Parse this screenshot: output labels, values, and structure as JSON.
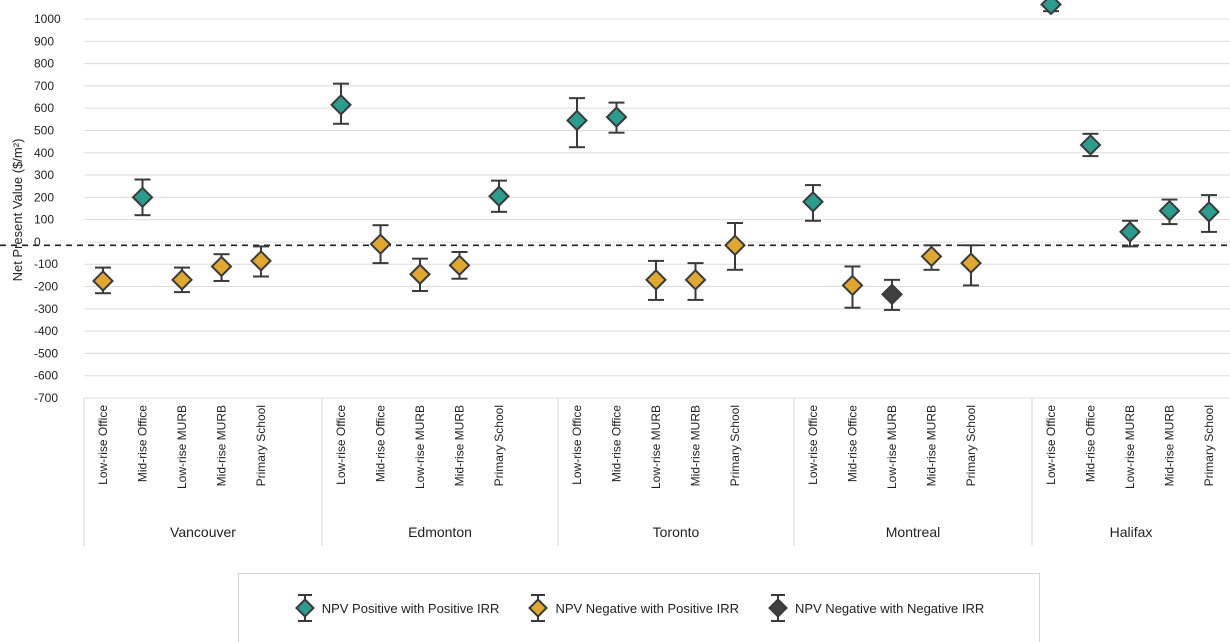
{
  "colors": {
    "positive": "#2a9d8f",
    "negative_pos_irr": "#e0a82e",
    "negative_neg_irr": "#404040",
    "stroke": "#3a3a3a",
    "grid": "#dcdcdc"
  },
  "chart_data": {
    "type": "scatter",
    "ylabel": "Net Present Value ($/m²)",
    "ylim": [
      -700,
      1000
    ],
    "yticks": [
      1000,
      900,
      800,
      700,
      600,
      500,
      400,
      300,
      200,
      100,
      0,
      -100,
      -200,
      -300,
      -400,
      -500,
      -600,
      -700
    ],
    "ytick_labels": [
      "1000",
      "900",
      "800",
      "700",
      "600",
      "500",
      "400",
      "300",
      "200",
      "100",
      "0",
      "-100",
      "-200",
      "-300",
      "-400",
      "-500",
      "-600",
      "-700"
    ],
    "grid": true,
    "dashed_line_value": -15,
    "groups": [
      {
        "name": "Vancouver",
        "points": [
          {
            "label": "Low-rise Office",
            "value": -175,
            "low": -230,
            "high": -115,
            "cat": "neg_pos"
          },
          {
            "label": "Mid-rise Office",
            "value": 200,
            "low": 120,
            "high": 280,
            "cat": "pos"
          },
          {
            "label": "Low-rise MURB",
            "value": -170,
            "low": -225,
            "high": -115,
            "cat": "neg_pos"
          },
          {
            "label": "Mid-rise MURB",
            "value": -110,
            "low": -175,
            "high": -55,
            "cat": "neg_pos"
          },
          {
            "label": "Primary School",
            "value": -85,
            "low": -155,
            "high": -20,
            "cat": "neg_pos"
          }
        ]
      },
      {
        "name": "Edmonton",
        "points": [
          {
            "label": "Low-rise Office",
            "value": 615,
            "low": 530,
            "high": 710,
            "cat": "pos"
          },
          {
            "label": "Mid-rise Office",
            "value": -10,
            "low": -95,
            "high": 75,
            "cat": "neg_pos"
          },
          {
            "label": "Low-rise MURB",
            "value": -145,
            "low": -220,
            "high": -75,
            "cat": "neg_pos"
          },
          {
            "label": "Mid-rise MURB",
            "value": -105,
            "low": -165,
            "high": -45,
            "cat": "neg_pos"
          },
          {
            "label": "Primary School",
            "value": 205,
            "low": 135,
            "high": 275,
            "cat": "pos"
          }
        ]
      },
      {
        "name": "Toronto",
        "points": [
          {
            "label": "Low-rise Office",
            "value": 545,
            "low": 425,
            "high": 645,
            "cat": "pos"
          },
          {
            "label": "Mid-rise Office",
            "value": 560,
            "low": 490,
            "high": 625,
            "cat": "pos"
          },
          {
            "label": "Low-rise MURB",
            "value": -170,
            "low": -260,
            "high": -85,
            "cat": "neg_pos"
          },
          {
            "label": "Mid-rise MURB",
            "value": -170,
            "low": -260,
            "high": -95,
            "cat": "neg_pos"
          },
          {
            "label": "Primary School",
            "value": -15,
            "low": -125,
            "high": 85,
            "cat": "neg_pos"
          }
        ]
      },
      {
        "name": "Montreal",
        "points": [
          {
            "label": "Low-rise Office",
            "value": 180,
            "low": 95,
            "high": 255,
            "cat": "pos"
          },
          {
            "label": "Mid-rise Office",
            "value": -195,
            "low": -295,
            "high": -110,
            "cat": "neg_pos"
          },
          {
            "label": "Low-rise MURB",
            "value": -235,
            "low": -305,
            "high": -170,
            "cat": "neg_neg"
          },
          {
            "label": "Mid-rise MURB",
            "value": -65,
            "low": -125,
            "high": -15,
            "cat": "neg_pos"
          },
          {
            "label": "Primary School",
            "value": -95,
            "low": -195,
            "high": -15,
            "cat": "neg_pos"
          }
        ]
      },
      {
        "name": "Halifax",
        "points": [
          {
            "label": "Low-rise Office",
            "value": 1065,
            "low": 1035,
            "high": 1090,
            "cat": "pos"
          },
          {
            "label": "Mid-rise Office",
            "value": 435,
            "low": 385,
            "high": 485,
            "cat": "pos"
          },
          {
            "label": "Low-rise MURB",
            "value": 45,
            "low": -20,
            "high": 95,
            "cat": "pos"
          },
          {
            "label": "Mid-rise MURB",
            "value": 140,
            "low": 80,
            "high": 190,
            "cat": "pos"
          },
          {
            "label": "Primary School",
            "value": 135,
            "low": 45,
            "high": 210,
            "cat": "pos"
          }
        ]
      }
    ],
    "legend": [
      {
        "cat": "pos",
        "label": "NPV Positive with Positive IRR"
      },
      {
        "cat": "neg_pos",
        "label": "NPV Negative with Positive IRR"
      },
      {
        "cat": "neg_neg",
        "label": "NPV Negative with Negative IRR"
      }
    ]
  }
}
